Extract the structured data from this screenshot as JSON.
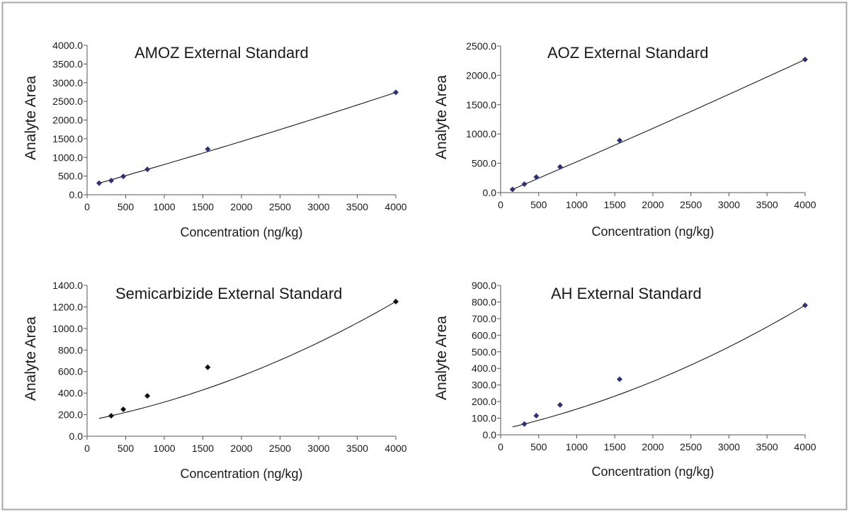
{
  "colors": {
    "border": "#a8a8a8",
    "axis": "#555555",
    "line": "#1a1a1a",
    "marker_navy": "#2e3177",
    "marker_black": "#111111"
  },
  "chart_data": [
    {
      "type": "line",
      "title": "AMOZ External Standard",
      "xlabel": "Concentration (ng/kg)",
      "ylabel": "Analyte Area",
      "xlim": [
        0,
        4000
      ],
      "ylim": [
        0,
        4000
      ],
      "x_ticks": [
        "0",
        "500",
        "1000",
        "1500",
        "2000",
        "2500",
        "3000",
        "3500",
        "4000"
      ],
      "y_ticks": [
        "0.0",
        "500.0",
        "1000.0",
        "1500.0",
        "2000.0",
        "2500.0",
        "3000.0",
        "3500.0",
        "4000.0"
      ],
      "series": [
        {
          "x": [
            156,
            312,
            469,
            781,
            1563,
            4000
          ],
          "y": [
            310,
            380,
            490,
            680,
            1220,
            2740
          ],
          "marker": "diamond",
          "marker_color": "#2e3177"
        }
      ],
      "fit": {
        "x_start": 156,
        "x_end": 4000,
        "curvature": -0.02
      },
      "legend": "none"
    },
    {
      "type": "line",
      "title": "AOZ External Standard",
      "xlabel": "Concentration (ng/kg)",
      "ylabel": "Analyte Area",
      "xlim": [
        0,
        4000
      ],
      "ylim": [
        0,
        2500
      ],
      "x_ticks": [
        "0",
        "500",
        "1000",
        "1500",
        "2000",
        "2500",
        "3000",
        "3500",
        "4000"
      ],
      "y_ticks": [
        "0.0",
        "500.0",
        "1000.0",
        "1500.0",
        "2000.0",
        "2500.0"
      ],
      "series": [
        {
          "x": [
            156,
            312,
            469,
            781,
            1563,
            4000
          ],
          "y": [
            55,
            145,
            265,
            440,
            890,
            2270
          ],
          "marker": "diamond",
          "marker_color": "#2e3177"
        }
      ],
      "fit": {
        "x_start": 156,
        "x_end": 4000,
        "curvature": -0.01
      },
      "legend": "none"
    },
    {
      "type": "line",
      "title": "Semicarbizide External Standard",
      "xlabel": "Concentration (ng/kg)",
      "ylabel": "Analyte Area",
      "xlim": [
        0,
        4000
      ],
      "ylim": [
        0,
        1400
      ],
      "x_ticks": [
        "0",
        "500",
        "1000",
        "1500",
        "2000",
        "2500",
        "3000",
        "3500",
        "4000"
      ],
      "y_ticks": [
        "0.0",
        "200.0",
        "400.0",
        "600.0",
        "800.0",
        "1000.0",
        "1200.0",
        "1400.0"
      ],
      "series": [
        {
          "x": [
            312,
            469,
            781,
            1563,
            4000
          ],
          "y": [
            190,
            250,
            375,
            640,
            1250
          ],
          "marker": "diamond",
          "marker_color": "#111111"
        }
      ],
      "fit": {
        "x_start": 156,
        "x_end": 4000,
        "curvature": -0.11
      },
      "legend": "none"
    },
    {
      "type": "line",
      "title": "AH External Standard",
      "xlabel": "Concentration (ng/kg)",
      "ylabel": "Analyte Area",
      "xlim": [
        0,
        4000
      ],
      "ylim": [
        0,
        900
      ],
      "x_ticks": [
        "0",
        "500",
        "1000",
        "1500",
        "2000",
        "2500",
        "3000",
        "3500",
        "4000"
      ],
      "y_ticks": [
        "0.0",
        "100.0",
        "200.0",
        "300.0",
        "400.0",
        "500.0",
        "600.0",
        "700.0",
        "800.0",
        "900.0"
      ],
      "series": [
        {
          "x": [
            312,
            469,
            781,
            1563,
            4000
          ],
          "y": [
            65,
            115,
            180,
            335,
            780
          ],
          "marker": "diamond",
          "marker_color": "#2e3177"
        }
      ],
      "fit": {
        "x_start": 156,
        "x_end": 4000,
        "curvature": -0.1
      },
      "legend": "none"
    }
  ]
}
